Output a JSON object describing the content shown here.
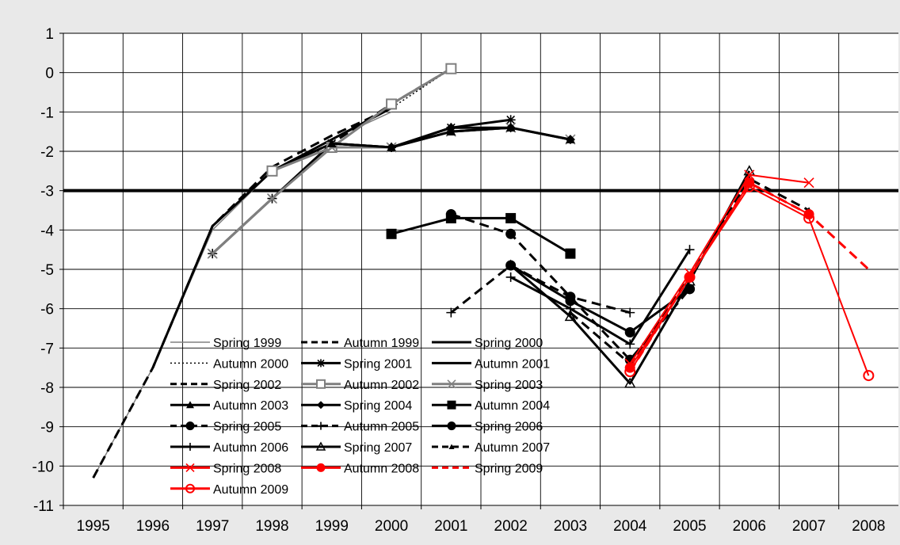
{
  "chart_data": {
    "type": "line",
    "title": "",
    "xlabel": "",
    "ylabel": "",
    "xlim": [
      1994.5,
      2008.5
    ],
    "ylim": [
      -11,
      1
    ],
    "x_ticks": [
      1995,
      1996,
      1997,
      1998,
      1999,
      2000,
      2001,
      2002,
      2003,
      2004,
      2005,
      2006,
      2007,
      2008
    ],
    "y_ticks": [
      1,
      0,
      -1,
      -2,
      -3,
      -4,
      -5,
      -6,
      -7,
      -8,
      -9,
      -10,
      -11
    ],
    "grid": true,
    "reference_line": {
      "y": -3,
      "color": "#000000"
    },
    "legend_position": "bottom-left",
    "series": [
      {
        "name": "Spring 1999",
        "color": "#808080",
        "dash": "solid",
        "marker": "none",
        "points": [
          [
            1995,
            -10.3
          ],
          [
            1996,
            -7.5
          ],
          [
            1997,
            -4.0
          ],
          [
            1998,
            -2.5
          ],
          [
            1999,
            -1.7
          ],
          [
            2000,
            -1.0
          ]
        ]
      },
      {
        "name": "Autumn 1999",
        "color": "#000000",
        "dash": "dash",
        "marker": "none",
        "points": [
          [
            1995,
            -10.3
          ],
          [
            1996,
            -7.5
          ],
          [
            1997,
            -3.9
          ],
          [
            1998,
            -2.4
          ],
          [
            1999,
            -1.6
          ],
          [
            2000,
            -0.9
          ]
        ]
      },
      {
        "name": "Spring 2000",
        "color": "#000000",
        "dash": "solid",
        "marker": "none",
        "points": [
          [
            1996,
            -7.5
          ],
          [
            1997,
            -3.9
          ],
          [
            1998,
            -2.5
          ],
          [
            1999,
            -1.7
          ],
          [
            2000,
            -0.9
          ]
        ]
      },
      {
        "name": "Autumn 2000",
        "color": "#000000",
        "dash": "dot",
        "marker": "none",
        "points": [
          [
            1997,
            -3.9
          ],
          [
            1998,
            -2.5
          ],
          [
            1999,
            -1.7
          ],
          [
            2000,
            -0.9
          ],
          [
            2001,
            0.1
          ]
        ]
      },
      {
        "name": "Spring 2001",
        "color": "#000000",
        "dash": "solid",
        "marker": "star",
        "points": [
          [
            1997,
            -4.6
          ],
          [
            1998,
            -3.2
          ],
          [
            1999,
            -1.8
          ],
          [
            2000,
            -1.9
          ],
          [
            2001,
            -1.4
          ],
          [
            2002,
            -1.2
          ]
        ]
      },
      {
        "name": "Autumn 2001",
        "color": "#000000",
        "dash": "solid",
        "marker": "none",
        "points": [
          [
            1998,
            -2.5
          ],
          [
            1999,
            -1.8
          ],
          [
            2000,
            -1.9
          ],
          [
            2001,
            -1.5
          ],
          [
            2002,
            -1.4
          ]
        ]
      },
      {
        "name": "Spring 2002",
        "color": "#000000",
        "dash": "dash",
        "marker": "none",
        "points": [
          [
            1998,
            -2.5
          ],
          [
            1999,
            -1.8
          ],
          [
            2000,
            -0.8
          ],
          [
            2001,
            0.1
          ]
        ]
      },
      {
        "name": "Autumn 2002",
        "color": "#7f7f7f",
        "dash": "solid",
        "marker": "square-open",
        "points": [
          [
            1998,
            -2.5
          ],
          [
            1999,
            -1.9
          ],
          [
            2000,
            -0.8
          ],
          [
            2001,
            0.1
          ]
        ]
      },
      {
        "name": "Spring 2003",
        "color": "#808080",
        "dash": "solid",
        "marker": "x",
        "points": [
          [
            1997,
            -4.6
          ],
          [
            1998,
            -3.2
          ],
          [
            1999,
            -1.9
          ],
          [
            2000,
            -1.9
          ],
          [
            2001,
            -1.5
          ],
          [
            2002,
            -1.4
          ],
          [
            2003,
            -1.7
          ]
        ]
      },
      {
        "name": "Autumn 2003",
        "color": "#000000",
        "dash": "solid",
        "marker": "triangle",
        "points": [
          [
            1999,
            -1.8
          ],
          [
            2000,
            -1.9
          ],
          [
            2001,
            -1.5
          ],
          [
            2002,
            -1.4
          ],
          [
            2003,
            -1.7
          ]
        ]
      },
      {
        "name": "Spring 2004",
        "color": "#000000",
        "dash": "solid",
        "marker": "diamond",
        "points": [
          [
            2000,
            -1.9
          ],
          [
            2001,
            -1.4
          ],
          [
            2002,
            -1.4
          ],
          [
            2003,
            -1.7
          ]
        ]
      },
      {
        "name": "Autumn 2004",
        "color": "#000000",
        "dash": "solid",
        "marker": "square",
        "points": [
          [
            2000,
            -4.1
          ],
          [
            2001,
            -3.7
          ],
          [
            2002,
            -3.7
          ],
          [
            2003,
            -4.6
          ]
        ]
      },
      {
        "name": "Spring 2005",
        "color": "#000000",
        "dash": "dash",
        "marker": "circle",
        "points": [
          [
            2001,
            -3.6
          ],
          [
            2002,
            -4.1
          ],
          [
            2003,
            -5.7
          ],
          [
            2004,
            -7.3
          ],
          [
            2005,
            -5.5
          ]
        ]
      },
      {
        "name": "Autumn 2005",
        "color": "#000000",
        "dash": "dash",
        "marker": "plus",
        "points": [
          [
            2001,
            -6.1
          ],
          [
            2002,
            -4.9
          ],
          [
            2003,
            -5.7
          ],
          [
            2004,
            -6.1
          ]
        ]
      },
      {
        "name": "Spring 2006",
        "color": "#000000",
        "dash": "solid",
        "marker": "circle",
        "points": [
          [
            2002,
            -4.9
          ],
          [
            2003,
            -5.8
          ],
          [
            2004,
            -6.6
          ],
          [
            2005,
            -5.5
          ]
        ]
      },
      {
        "name": "Autumn 2006",
        "color": "#000000",
        "dash": "solid",
        "marker": "plus",
        "points": [
          [
            2002,
            -5.2
          ],
          [
            2003,
            -6.0
          ],
          [
            2004,
            -6.9
          ],
          [
            2005,
            -4.5
          ]
        ]
      },
      {
        "name": "Spring 2007",
        "color": "#000000",
        "dash": "solid",
        "marker": "triangle-open",
        "points": [
          [
            2002,
            -4.9
          ],
          [
            2003,
            -6.2
          ],
          [
            2004,
            -7.9
          ],
          [
            2005,
            -5.3
          ],
          [
            2006,
            -2.5
          ]
        ]
      },
      {
        "name": "Autumn 2007",
        "color": "#000000",
        "dash": "dash",
        "marker": "triangle-small",
        "points": [
          [
            2003,
            -6.1
          ],
          [
            2004,
            -7.4
          ],
          [
            2005,
            -5.2
          ],
          [
            2006,
            -2.7
          ],
          [
            2007,
            -3.5
          ]
        ]
      },
      {
        "name": "Spring 2008",
        "color": "#ff0000",
        "dash": "solid",
        "marker": "x",
        "points": [
          [
            2004,
            -7.4
          ],
          [
            2005,
            -5.1
          ],
          [
            2006,
            -2.6
          ],
          [
            2007,
            -2.8
          ]
        ]
      },
      {
        "name": "Autumn 2008",
        "color": "#ff0000",
        "dash": "solid",
        "marker": "circle",
        "points": [
          [
            2004,
            -7.5
          ],
          [
            2005,
            -5.2
          ],
          [
            2006,
            -2.8
          ],
          [
            2007,
            -3.6
          ]
        ]
      },
      {
        "name": "Spring 2009",
        "color": "#ff0000",
        "dash": "dash",
        "marker": "none",
        "points": [
          [
            2004,
            -7.6
          ],
          [
            2005,
            -5.2
          ],
          [
            2006,
            -2.8
          ],
          [
            2007,
            -3.6
          ],
          [
            2008,
            -5.0
          ]
        ]
      },
      {
        "name": "Autumn 2009",
        "color": "#ff0000",
        "dash": "solid",
        "marker": "circle-open",
        "points": [
          [
            2004,
            -7.6
          ],
          [
            2005,
            -5.2
          ],
          [
            2006,
            -2.9
          ],
          [
            2007,
            -3.7
          ],
          [
            2008,
            -7.7
          ]
        ]
      }
    ]
  }
}
